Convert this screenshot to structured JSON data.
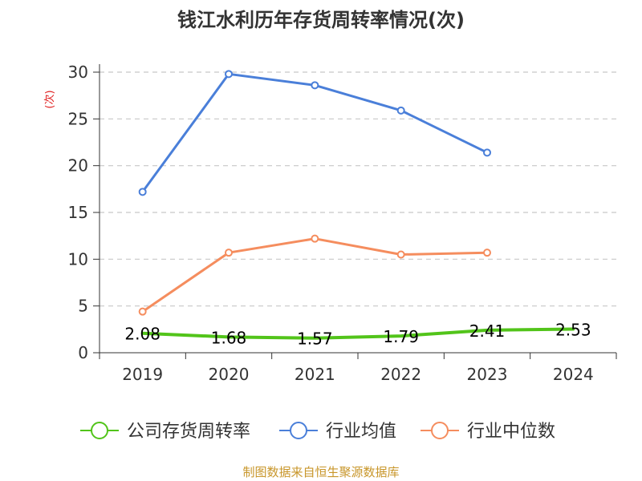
{
  "chart_data": {
    "type": "line",
    "title": "钱江水利历年存货周转率情况(次)",
    "ylabel": "(次)",
    "categories": [
      "2019",
      "2020",
      "2021",
      "2022",
      "2023",
      "2024"
    ],
    "ylim": [
      0,
      30
    ],
    "yticks": [
      0,
      5,
      10,
      15,
      20,
      25,
      30
    ],
    "grid": true,
    "legend_position": "bottom",
    "series": [
      {
        "name": "公司存货周转率",
        "color": "#52c41a",
        "values": [
          2.08,
          1.68,
          1.57,
          1.79,
          2.41,
          2.53
        ],
        "labels": [
          "2.08",
          "1.68",
          "1.57",
          "1.79",
          "2.41",
          "2.53"
        ]
      },
      {
        "name": "行业均值",
        "color": "#4a7fd9",
        "values": [
          17.2,
          29.8,
          28.6,
          25.9,
          21.4,
          null
        ]
      },
      {
        "name": "行业中位数",
        "color": "#f58d5e",
        "values": [
          4.4,
          10.7,
          12.2,
          10.5,
          10.7,
          null
        ]
      }
    ],
    "source": "制图数据来自恒生聚源数据库"
  }
}
